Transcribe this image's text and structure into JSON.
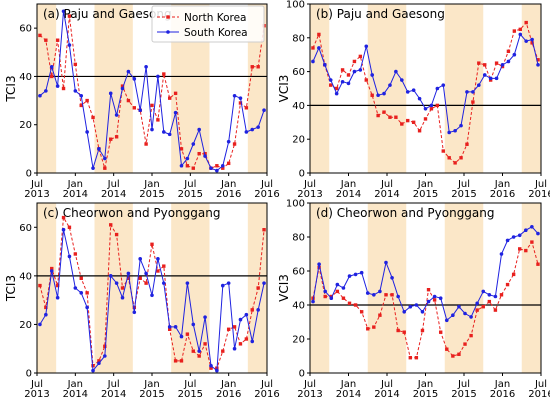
{
  "figure": {
    "legend": [
      "North Korea",
      "South Korea"
    ],
    "colors": {
      "north": "#e8201e",
      "south": "#1f22e0",
      "shade": "#fbe7c8",
      "hline": "#000000"
    }
  },
  "chart_data": [
    {
      "type": "line",
      "title": "(a) Paju and Gaesong",
      "ylabel": "TCI3",
      "xlim": [
        2013.5,
        2016.5
      ],
      "ylim": [
        0,
        70
      ],
      "yticks": [
        0,
        20,
        40,
        60
      ],
      "xticks": [
        "Jul 2013",
        "Jan 2014",
        "Jul 2014",
        "Jan 2015",
        "Jul 2015",
        "Jan 2016",
        "Jul 2016"
      ],
      "threshold": 40,
      "grid": false,
      "legend_position": "top-right",
      "shaded_periods": [
        [
          2013.5,
          2013.75
        ],
        [
          2014.25,
          2014.75
        ],
        [
          2015.25,
          2015.75
        ],
        [
          2016.25,
          2016.5
        ]
      ],
      "series": [
        {
          "name": "North Korea",
          "style": "dashed-square",
          "values": [
            57,
            55,
            40,
            55,
            35,
            65,
            45,
            28,
            30,
            23,
            10,
            2,
            14,
            15,
            36,
            30,
            27,
            26,
            12,
            28,
            22,
            41,
            31,
            33,
            10,
            3,
            2,
            8,
            8,
            2,
            3,
            2,
            4,
            12,
            29,
            27,
            44,
            44,
            61
          ]
        },
        {
          "name": "South Korea",
          "style": "solid-circle",
          "values": [
            32,
            34,
            44,
            36,
            67,
            53,
            34,
            32,
            17,
            2,
            10,
            6,
            33,
            24,
            35,
            42,
            39,
            26,
            44,
            18,
            40,
            17,
            16,
            25,
            3,
            6,
            12,
            18,
            7,
            2,
            1,
            3,
            13,
            32,
            31,
            17,
            18,
            19,
            26
          ]
        }
      ]
    },
    {
      "type": "line",
      "title": "(b) Paju and Gaesong",
      "ylabel": "VCI3",
      "xlim": [
        2013.5,
        2016.5
      ],
      "ylim": [
        0,
        100
      ],
      "yticks": [
        0,
        20,
        40,
        60,
        80,
        100
      ],
      "xticks": [
        "Jul 2013",
        "Jan 2014",
        "Jul 2014",
        "Jan 2015",
        "Jul 2015",
        "Jan 2016",
        "Jul 2016"
      ],
      "threshold": 40,
      "grid": false,
      "shaded_periods": [
        [
          2013.5,
          2013.75
        ],
        [
          2014.25,
          2014.75
        ],
        [
          2015.25,
          2015.75
        ],
        [
          2016.25,
          2016.5
        ]
      ],
      "series": [
        {
          "name": "North Korea",
          "style": "dashed-square",
          "values": [
            74,
            82,
            64,
            52,
            50,
            61,
            58,
            66,
            69,
            55,
            46,
            34,
            36,
            33,
            33,
            29,
            31,
            30,
            25,
            32,
            38,
            40,
            13,
            9,
            6,
            9,
            17,
            42,
            65,
            64,
            55,
            65,
            63,
            72,
            84,
            85,
            89,
            77,
            67
          ]
        },
        {
          "name": "South Korea",
          "style": "solid-circle",
          "values": [
            66,
            74,
            64,
            55,
            47,
            54,
            53,
            60,
            61,
            75,
            58,
            46,
            47,
            52,
            60,
            55,
            48,
            49,
            44,
            38,
            40,
            50,
            52,
            24,
            25,
            28,
            48,
            48,
            52,
            58,
            56,
            56,
            64,
            66,
            70,
            82,
            78,
            79,
            64
          ]
        }
      ]
    },
    {
      "type": "line",
      "title": "(c) Cheorwon and Pyonggang",
      "ylabel": "TCI3",
      "xlim": [
        2013.5,
        2016.5
      ],
      "ylim": [
        0,
        70
      ],
      "yticks": [
        0,
        20,
        40,
        60
      ],
      "xticks": [
        "Jul 2013",
        "Jan 2014",
        "Jul 2014",
        "Jan 2015",
        "Jul 2015",
        "Jan 2016",
        "Jul 2016"
      ],
      "threshold": 40,
      "grid": false,
      "shaded_periods": [
        [
          2013.5,
          2013.75
        ],
        [
          2014.25,
          2014.75
        ],
        [
          2015.25,
          2015.75
        ],
        [
          2016.25,
          2016.5
        ]
      ],
      "series": [
        {
          "name": "North Korea",
          "style": "dashed-square",
          "values": [
            36,
            27,
            43,
            36,
            64,
            60,
            49,
            39,
            33,
            3,
            5,
            11,
            61,
            57,
            35,
            39,
            27,
            39,
            37,
            53,
            42,
            44,
            18,
            5,
            5,
            16,
            9,
            7,
            12,
            2,
            2,
            9,
            18,
            19,
            12,
            14,
            26,
            35,
            59
          ]
        },
        {
          "name": "South Korea",
          "style": "solid-circle",
          "values": [
            20,
            24,
            42,
            31,
            59,
            48,
            35,
            33,
            27,
            1,
            4,
            7,
            40,
            37,
            31,
            41,
            25,
            47,
            41,
            32,
            47,
            37,
            19,
            19,
            15,
            37,
            20,
            9,
            23,
            3,
            1,
            36,
            37,
            10,
            22,
            24,
            13,
            26,
            37
          ]
        }
      ]
    },
    {
      "type": "line",
      "title": "(d) Cheorwon and Pyonggang",
      "ylabel": "VCI3",
      "xlim": [
        2013.5,
        2016.5
      ],
      "ylim": [
        0,
        100
      ],
      "yticks": [
        0,
        20,
        40,
        60,
        80,
        100
      ],
      "xticks": [
        "Jul 2013",
        "Jan 2014",
        "Jul 2014",
        "Jan 2015",
        "Jul 2015",
        "Jan 2016",
        "Jul 2016"
      ],
      "threshold": 40,
      "grid": false,
      "shaded_periods": [
        [
          2013.5,
          2013.75
        ],
        [
          2014.25,
          2014.75
        ],
        [
          2015.25,
          2015.75
        ],
        [
          2016.25,
          2016.5
        ]
      ],
      "series": [
        {
          "name": "North Korea",
          "style": "dashed-square",
          "values": [
            44,
            62,
            45,
            45,
            48,
            44,
            41,
            40,
            36,
            26,
            27,
            34,
            46,
            46,
            25,
            24,
            9,
            9,
            25,
            49,
            43,
            24,
            14,
            10,
            11,
            17,
            22,
            37,
            39,
            42,
            37,
            46,
            52,
            58,
            73,
            72,
            77,
            64
          ]
        },
        {
          "name": "South Korea",
          "style": "solid-circle",
          "values": [
            42,
            64,
            48,
            44,
            52,
            50,
            57,
            58,
            59,
            47,
            46,
            48,
            65,
            56,
            45,
            36,
            39,
            40,
            36,
            42,
            45,
            44,
            31,
            34,
            39,
            35,
            33,
            41,
            48,
            46,
            45,
            70,
            78,
            80,
            81,
            84,
            86,
            82
          ]
        }
      ]
    }
  ]
}
